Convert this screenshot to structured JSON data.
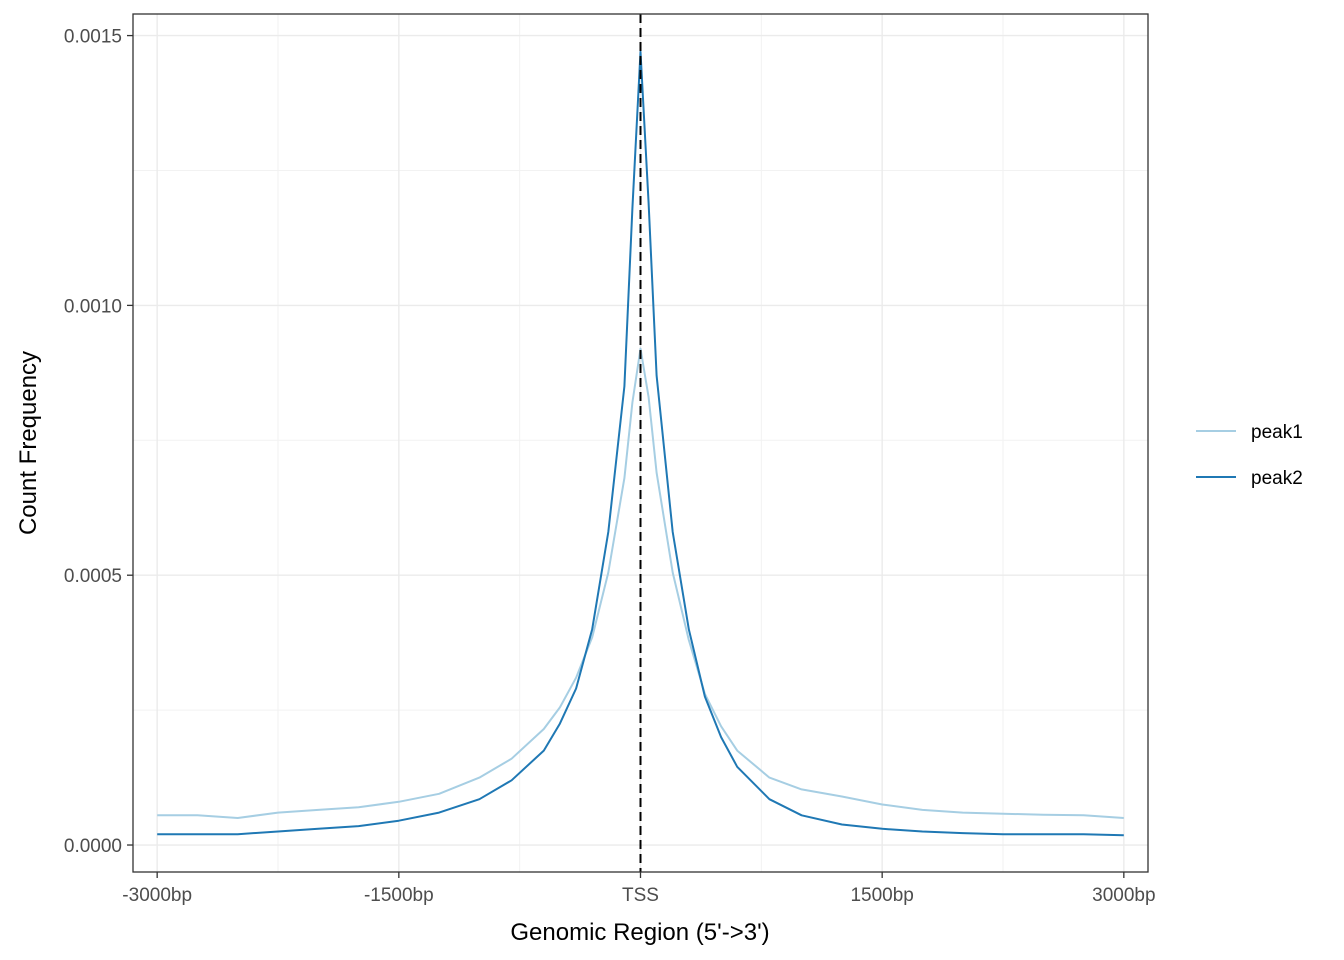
{
  "chart_data": {
    "type": "line",
    "xlabel": "Genomic Region (5'->3')",
    "ylabel": "Count Frequency",
    "xlim": [
      -3150,
      3150
    ],
    "ylim": [
      -5e-05,
      0.00154
    ],
    "x_ticks": [
      {
        "value": -3000,
        "label": "-3000bp"
      },
      {
        "value": -1500,
        "label": "-1500bp"
      },
      {
        "value": 0,
        "label": "TSS"
      },
      {
        "value": 1500,
        "label": "1500bp"
      },
      {
        "value": 3000,
        "label": "3000bp"
      }
    ],
    "x_minor_grid": [
      -2250,
      -750,
      750,
      2250
    ],
    "y_ticks": [
      {
        "value": 0.0,
        "label": "0.0000"
      },
      {
        "value": 0.0005,
        "label": "0.0005"
      },
      {
        "value": 0.001,
        "label": "0.0010"
      },
      {
        "value": 0.0015,
        "label": "0.0015"
      }
    ],
    "y_minor_grid": [
      0.00025,
      0.00075,
      0.00125
    ],
    "grid": true,
    "legend_position": "right",
    "vline": {
      "x": 0,
      "style": "dashed",
      "color": "#000000"
    },
    "x": [
      -3000,
      -2750,
      -2500,
      -2250,
      -2000,
      -1750,
      -1500,
      -1250,
      -1000,
      -800,
      -600,
      -500,
      -400,
      -300,
      -200,
      -100,
      -50,
      0,
      50,
      100,
      200,
      300,
      400,
      500,
      600,
      800,
      1000,
      1250,
      1500,
      1750,
      2000,
      2250,
      2500,
      2750,
      3000
    ],
    "series": [
      {
        "name": "peak1",
        "color": "#a6cee3",
        "values": [
          5.5e-05,
          5.5e-05,
          5e-05,
          6e-05,
          6.5e-05,
          7e-05,
          8e-05,
          9.5e-05,
          0.000125,
          0.00016,
          0.000215,
          0.000255,
          0.00031,
          0.000385,
          0.000505,
          0.00068,
          0.00082,
          0.00092,
          0.00083,
          0.00069,
          0.000505,
          0.00038,
          0.00028,
          0.00022,
          0.000175,
          0.000125,
          0.000103,
          9e-05,
          7.5e-05,
          6.5e-05,
          6e-05,
          5.8e-05,
          5.6e-05,
          5.5e-05,
          5e-05
        ]
      },
      {
        "name": "peak2",
        "color": "#1f78b4",
        "values": [
          2e-05,
          2e-05,
          2e-05,
          2.5e-05,
          3e-05,
          3.5e-05,
          4.5e-05,
          6e-05,
          8.5e-05,
          0.00012,
          0.000175,
          0.000225,
          0.00029,
          0.0004,
          0.00058,
          0.00085,
          0.00118,
          0.00147,
          0.00119,
          0.00087,
          0.00058,
          0.0004,
          0.000275,
          0.0002,
          0.000145,
          8.5e-05,
          5.5e-05,
          3.8e-05,
          3e-05,
          2.5e-05,
          2.2e-05,
          2e-05,
          2e-05,
          2e-05,
          1.8e-05
        ]
      }
    ]
  }
}
